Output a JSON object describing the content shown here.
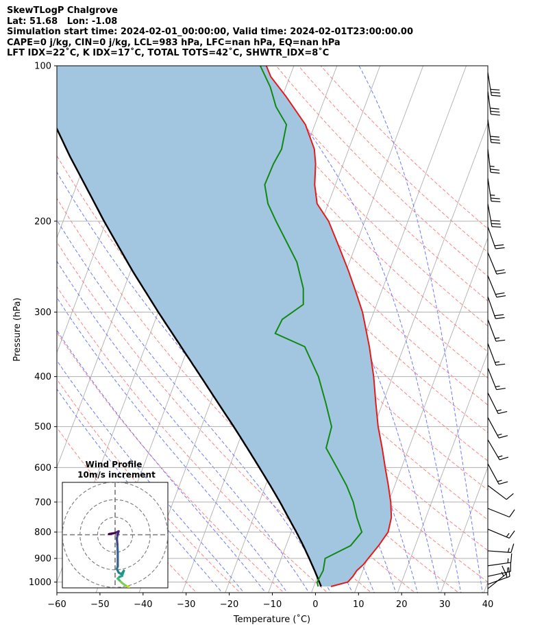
{
  "header": {
    "line1": "SkewTLogP Chalgrove",
    "line2": "Lat: 51.68   Lon: -1.08",
    "line3": "Simulation start time: 2024-02-01_00:00:00, Valid time: 2024-02-01T23:00:00.00",
    "line4": "CAPE=0 j/kg, CIN=0 j/kg, LCL=983 hPa, LFC=nan hPa, EQ=nan hPa",
    "line5": "LFT IDX=22˚C, K IDX=17˚C, TOTAL TOTS=42˚C, SHWTR_IDX=8˚C"
  },
  "colors": {
    "temperature": "#e41a1a",
    "dewpoint": "#118811",
    "parcel": "#000000",
    "cape_shading": "#a3c6e0",
    "dry_adiabat": "#ff6b6b",
    "moist_adiabat": "#5060ff",
    "isotherm": "#b0b0b0"
  },
  "chart_data": [
    {
      "type": "skewt",
      "xlabel": "Temperature (˚C)",
      "ylabel": "Pressure (hPa)",
      "xlim": [
        -60,
        40
      ],
      "ylim": [
        1050,
        100
      ],
      "yscale": "log",
      "x_ticks": [
        "−60",
        "−50",
        "−40",
        "−30",
        "−20",
        "−10",
        "0",
        "10",
        "20",
        "30",
        "40"
      ],
      "x_tick_values": [
        -60,
        -50,
        -40,
        -30,
        -20,
        -10,
        0,
        10,
        20,
        30,
        40
      ],
      "y_ticks": [
        "1000",
        "900",
        "800",
        "700",
        "600",
        "500",
        "400",
        "300",
        "200",
        "100"
      ],
      "y_tick_values": [
        1000,
        900,
        800,
        700,
        600,
        500,
        400,
        300,
        200,
        100
      ],
      "grid": true,
      "skew_deg_per_decade": 45,
      "temperature": [
        {
          "p": 1020,
          "t": 4.0
        },
        {
          "p": 1000,
          "t": 7.5
        },
        {
          "p": 975,
          "t": 8.2
        },
        {
          "p": 950,
          "t": 8.6
        },
        {
          "p": 925,
          "t": 9.6
        },
        {
          "p": 900,
          "t": 10.2
        },
        {
          "p": 850,
          "t": 11.5
        },
        {
          "p": 800,
          "t": 12.5
        },
        {
          "p": 750,
          "t": 12.0
        },
        {
          "p": 700,
          "t": 10.5
        },
        {
          "p": 650,
          "t": 8.5
        },
        {
          "p": 600,
          "t": 6.2
        },
        {
          "p": 550,
          "t": 3.8
        },
        {
          "p": 500,
          "t": 1.0
        },
        {
          "p": 450,
          "t": -1.6
        },
        {
          "p": 400,
          "t": -4.4
        },
        {
          "p": 350,
          "t": -8.0
        },
        {
          "p": 300,
          "t": -12.6
        },
        {
          "p": 275,
          "t": -15.8
        },
        {
          "p": 250,
          "t": -19.4
        },
        {
          "p": 225,
          "t": -23.6
        },
        {
          "p": 200,
          "t": -28.4
        },
        {
          "p": 185,
          "t": -32.6
        },
        {
          "p": 170,
          "t": -34.8
        },
        {
          "p": 155,
          "t": -36.4
        },
        {
          "p": 145,
          "t": -38.0
        },
        {
          "p": 130,
          "t": -42.2
        },
        {
          "p": 115,
          "t": -49.0
        },
        {
          "p": 105,
          "t": -54.4
        },
        {
          "p": 100,
          "t": -56.4
        }
      ],
      "dewpoint": [
        {
          "p": 1020,
          "t": 1.0
        },
        {
          "p": 1000,
          "t": 0.4
        },
        {
          "p": 950,
          "t": 0.8
        },
        {
          "p": 900,
          "t": 0.2
        },
        {
          "p": 850,
          "t": 5.0
        },
        {
          "p": 800,
          "t": 6.4
        },
        {
          "p": 750,
          "t": 4.0
        },
        {
          "p": 700,
          "t": 1.8
        },
        {
          "p": 650,
          "t": -1.2
        },
        {
          "p": 600,
          "t": -5.0
        },
        {
          "p": 550,
          "t": -9.2
        },
        {
          "p": 500,
          "t": -9.8
        },
        {
          "p": 450,
          "t": -13.2
        },
        {
          "p": 400,
          "t": -17.2
        },
        {
          "p": 350,
          "t": -23.0
        },
        {
          "p": 330,
          "t": -31.0
        },
        {
          "p": 310,
          "t": -30.6
        },
        {
          "p": 290,
          "t": -27.0
        },
        {
          "p": 270,
          "t": -28.4
        },
        {
          "p": 240,
          "t": -32.2
        },
        {
          "p": 220,
          "t": -36.2
        },
        {
          "p": 200,
          "t": -40.6
        },
        {
          "p": 185,
          "t": -44.0
        },
        {
          "p": 170,
          "t": -46.4
        },
        {
          "p": 155,
          "t": -46.2
        },
        {
          "p": 145,
          "t": -45.6
        },
        {
          "p": 130,
          "t": -46.6
        },
        {
          "p": 120,
          "t": -50.6
        },
        {
          "p": 110,
          "t": -53.6
        },
        {
          "p": 100,
          "t": -57.8
        }
      ],
      "parcel": [
        {
          "p": 1020,
          "t": 1.7
        },
        {
          "p": 983,
          "t": 0.2
        },
        {
          "p": 950,
          "t": -1.2
        },
        {
          "p": 900,
          "t": -3.5
        },
        {
          "p": 850,
          "t": -6.0
        },
        {
          "p": 800,
          "t": -8.8
        },
        {
          "p": 750,
          "t": -11.9
        },
        {
          "p": 700,
          "t": -15.2
        },
        {
          "p": 650,
          "t": -18.9
        },
        {
          "p": 600,
          "t": -23.0
        },
        {
          "p": 550,
          "t": -27.5
        },
        {
          "p": 500,
          "t": -32.5
        },
        {
          "p": 450,
          "t": -38.2
        },
        {
          "p": 400,
          "t": -44.5
        },
        {
          "p": 350,
          "t": -51.7
        },
        {
          "p": 300,
          "t": -60.0
        },
        {
          "p": 250,
          "t": -69.5
        },
        {
          "p": 200,
          "t": -80.5
        },
        {
          "p": 150,
          "t": -94.0
        },
        {
          "p": 100,
          "t": -112.0
        }
      ],
      "wind_barbs": [
        {
          "p": 103,
          "u": -5,
          "v": 32
        },
        {
          "p": 112,
          "u": -4,
          "v": 30
        },
        {
          "p": 127,
          "u": -4,
          "v": 28
        },
        {
          "p": 145,
          "u": -3,
          "v": 25
        },
        {
          "p": 165,
          "u": -4,
          "v": 27
        },
        {
          "p": 185,
          "u": -5,
          "v": 28
        },
        {
          "p": 205,
          "u": -6,
          "v": 17
        },
        {
          "p": 230,
          "u": -7,
          "v": 17
        },
        {
          "p": 255,
          "u": -7,
          "v": 17
        },
        {
          "p": 280,
          "u": -6,
          "v": 17
        },
        {
          "p": 310,
          "u": -6,
          "v": 16
        },
        {
          "p": 345,
          "u": -6,
          "v": 16
        },
        {
          "p": 385,
          "u": -6,
          "v": 15
        },
        {
          "p": 430,
          "u": -7,
          "v": 14
        },
        {
          "p": 480,
          "u": -7,
          "v": 13
        },
        {
          "p": 530,
          "u": -7,
          "v": 12
        },
        {
          "p": 590,
          "u": -6,
          "v": 11
        },
        {
          "p": 650,
          "u": -8,
          "v": 6
        },
        {
          "p": 720,
          "u": -10,
          "v": 4
        },
        {
          "p": 790,
          "u": -12,
          "v": 5
        },
        {
          "p": 870,
          "u": -14,
          "v": 1
        },
        {
          "p": 930,
          "u": -14,
          "v": -2
        },
        {
          "p": 975,
          "u": -14,
          "v": -3
        },
        {
          "p": 1010,
          "u": -14,
          "v": -5
        },
        {
          "p": 1030,
          "u": -10,
          "v": -8
        }
      ]
    },
    {
      "type": "hodograph",
      "title": "Wind Profile",
      "subtitle": "10m/s increment",
      "rings_ms": [
        10,
        20,
        30
      ],
      "points": [
        {
          "u": 8.0,
          "v": -30.0
        },
        {
          "u": 6.0,
          "v": -29.0
        },
        {
          "u": 4.0,
          "v": -27.5
        },
        {
          "u": 2.5,
          "v": -26.0
        },
        {
          "u": 1.5,
          "v": -25.0
        },
        {
          "u": 2.5,
          "v": -24.0
        },
        {
          "u": 4.0,
          "v": -23.5
        },
        {
          "u": 5.0,
          "v": -20.5
        },
        {
          "u": 3.5,
          "v": -22.5
        },
        {
          "u": 2.0,
          "v": -21.5
        },
        {
          "u": 1.0,
          "v": -19.5
        },
        {
          "u": 1.5,
          "v": -18.0
        },
        {
          "u": 1.5,
          "v": -10.0
        },
        {
          "u": 1.3,
          "v": -5.5
        },
        {
          "u": 1.0,
          "v": -2.0
        },
        {
          "u": 1.5,
          "v": 0.2
        },
        {
          "u": 2.0,
          "v": 2.0
        },
        {
          "u": 0.0,
          "v": 1.0
        },
        {
          "u": -3.0,
          "v": 0.5
        },
        {
          "u": -3.5,
          "v": 0.4
        }
      ]
    }
  ]
}
